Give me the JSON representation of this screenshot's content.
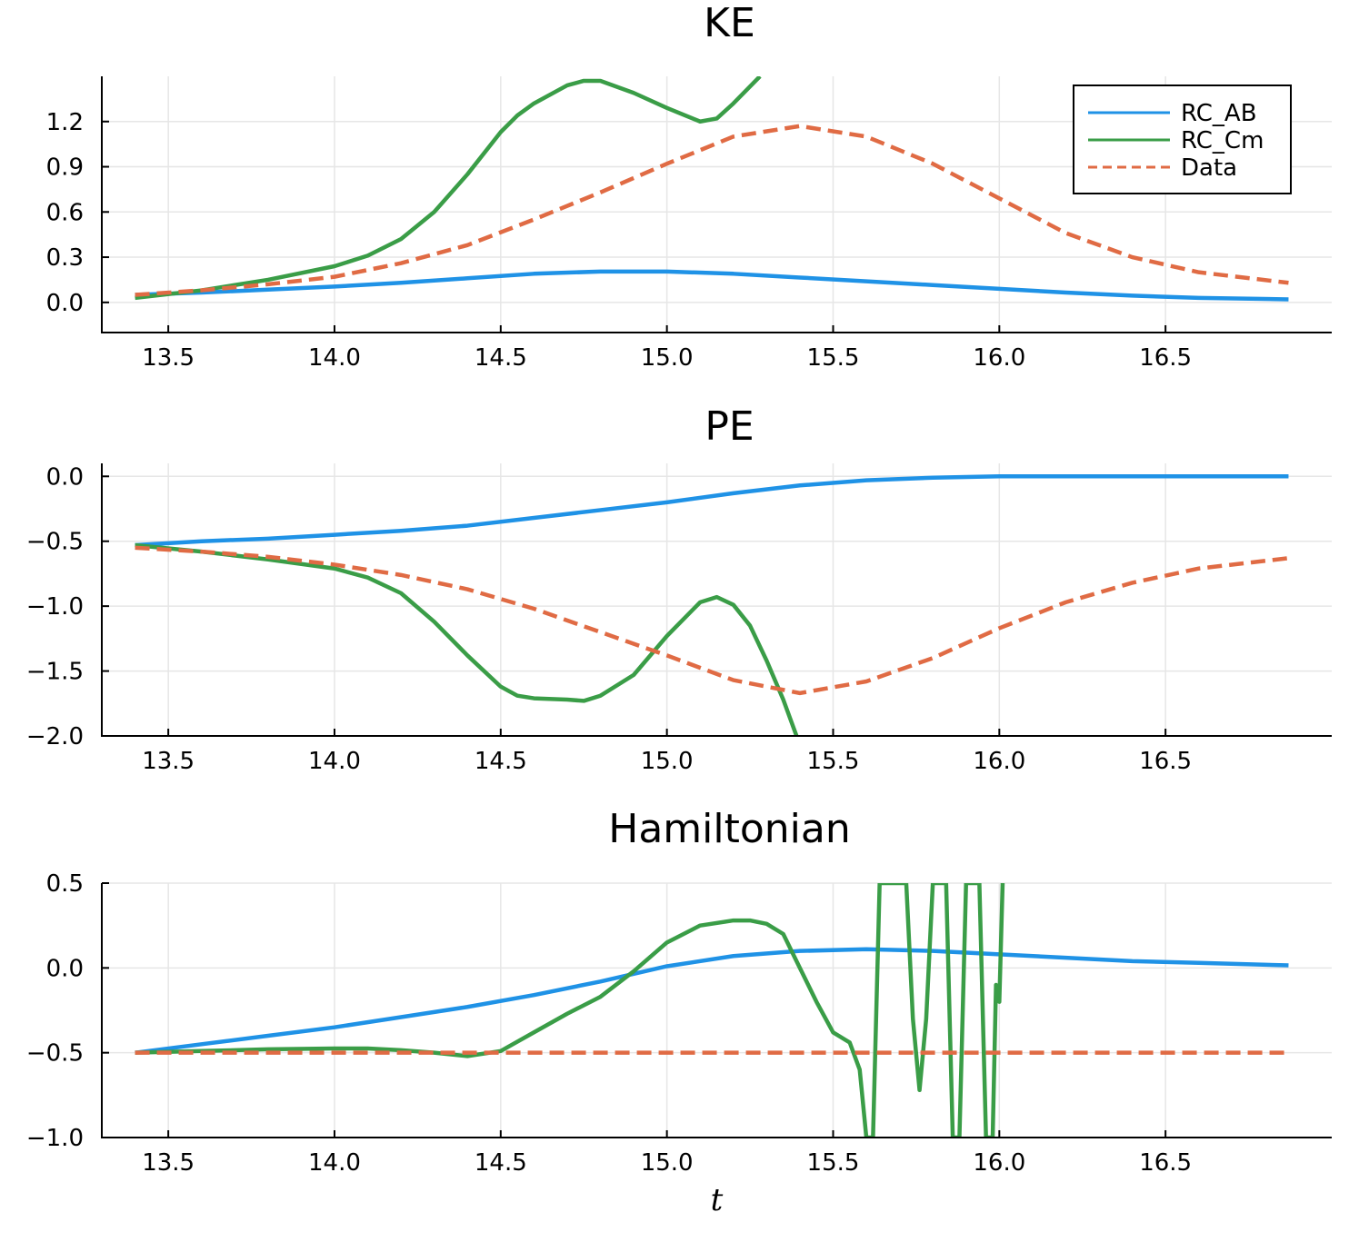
{
  "colors": {
    "RC_AB": "#1f92e6",
    "RC_Cm": "#3a9d47",
    "Data": "#e06b44"
  },
  "chart_data": [
    {
      "type": "line",
      "title": "KE",
      "xlabel": "",
      "ylabel": "",
      "xlim": [
        13.3,
        17.0
      ],
      "ylim": [
        -0.2,
        1.5
      ],
      "xticks": [
        "13.5",
        "14.0",
        "14.5",
        "15.0",
        "15.5",
        "16.0",
        "16.5"
      ],
      "yticks": [
        "0.0",
        "0.3",
        "0.6",
        "0.9",
        "1.2"
      ],
      "grid": true,
      "legend": "top-right",
      "series": [
        {
          "name": "RC_AB",
          "style": "solid",
          "x": [
            13.4,
            13.6,
            13.8,
            14.0,
            14.2,
            14.4,
            14.6,
            14.8,
            15.0,
            15.2,
            15.4,
            15.6,
            15.8,
            16.0,
            16.2,
            16.4,
            16.6,
            16.87
          ],
          "y": [
            0.05,
            0.065,
            0.085,
            0.105,
            0.13,
            0.16,
            0.19,
            0.205,
            0.205,
            0.19,
            0.165,
            0.14,
            0.115,
            0.09,
            0.065,
            0.045,
            0.03,
            0.02
          ]
        },
        {
          "name": "RC_Cm",
          "style": "solid",
          "x": [
            13.4,
            13.6,
            13.8,
            14.0,
            14.1,
            14.2,
            14.3,
            14.4,
            14.5,
            14.55,
            14.6,
            14.7,
            14.75,
            14.8,
            14.9,
            15.0,
            15.1,
            15.15,
            15.2,
            15.28
          ],
          "y": [
            0.03,
            0.08,
            0.15,
            0.24,
            0.31,
            0.42,
            0.6,
            0.85,
            1.13,
            1.24,
            1.32,
            1.44,
            1.47,
            1.47,
            1.39,
            1.29,
            1.2,
            1.22,
            1.32,
            1.5
          ]
        },
        {
          "name": "Data",
          "style": "dashed",
          "x": [
            13.4,
            13.6,
            13.8,
            14.0,
            14.2,
            14.4,
            14.6,
            14.8,
            15.0,
            15.2,
            15.4,
            15.6,
            15.8,
            16.0,
            16.2,
            16.4,
            16.6,
            16.87
          ],
          "y": [
            0.05,
            0.08,
            0.12,
            0.17,
            0.26,
            0.38,
            0.55,
            0.73,
            0.92,
            1.1,
            1.17,
            1.1,
            0.92,
            0.69,
            0.46,
            0.3,
            0.2,
            0.13
          ]
        }
      ]
    },
    {
      "type": "line",
      "title": "PE",
      "xlabel": "",
      "ylabel": "",
      "xlim": [
        13.3,
        17.0
      ],
      "ylim": [
        -2.0,
        0.1
      ],
      "xticks": [
        "13.5",
        "14.0",
        "14.5",
        "15.0",
        "15.5",
        "16.0",
        "16.5"
      ],
      "yticks": [
        "0.0",
        "−0.5",
        "−1.0",
        "−1.5",
        "−2.0"
      ],
      "grid": true,
      "series": [
        {
          "name": "RC_AB",
          "style": "solid",
          "x": [
            13.4,
            13.6,
            13.8,
            14.0,
            14.2,
            14.4,
            14.6,
            14.8,
            15.0,
            15.2,
            15.4,
            15.6,
            15.8,
            16.0,
            16.2,
            16.4,
            16.6,
            16.87
          ],
          "y": [
            -0.53,
            -0.5,
            -0.48,
            -0.45,
            -0.42,
            -0.38,
            -0.32,
            -0.26,
            -0.2,
            -0.13,
            -0.07,
            -0.03,
            -0.01,
            0.0,
            0.0,
            0.0,
            0.0,
            0.0
          ]
        },
        {
          "name": "RC_Cm",
          "style": "solid",
          "x": [
            13.4,
            13.6,
            13.8,
            14.0,
            14.1,
            14.2,
            14.3,
            14.4,
            14.5,
            14.55,
            14.6,
            14.7,
            14.75,
            14.8,
            14.9,
            15.0,
            15.1,
            15.15,
            15.2,
            15.25,
            15.3,
            15.35,
            15.39
          ],
          "y": [
            -0.53,
            -0.58,
            -0.64,
            -0.71,
            -0.78,
            -0.9,
            -1.12,
            -1.38,
            -1.62,
            -1.69,
            -1.71,
            -1.72,
            -1.73,
            -1.69,
            -1.53,
            -1.23,
            -0.97,
            -0.93,
            -0.99,
            -1.15,
            -1.42,
            -1.72,
            -2.0
          ]
        },
        {
          "name": "Data",
          "style": "dashed",
          "x": [
            13.4,
            13.6,
            13.8,
            14.0,
            14.2,
            14.4,
            14.6,
            14.8,
            15.0,
            15.2,
            15.4,
            15.6,
            15.8,
            16.0,
            16.2,
            16.4,
            16.6,
            16.87
          ],
          "y": [
            -0.55,
            -0.58,
            -0.62,
            -0.68,
            -0.76,
            -0.87,
            -1.02,
            -1.2,
            -1.38,
            -1.57,
            -1.67,
            -1.58,
            -1.4,
            -1.17,
            -0.97,
            -0.82,
            -0.71,
            -0.63
          ]
        }
      ]
    },
    {
      "type": "line",
      "title": "Hamiltonian",
      "xlabel": "t",
      "ylabel": "",
      "xlim": [
        13.3,
        17.0
      ],
      "ylim": [
        -1.0,
        0.5
      ],
      "xticks": [
        "13.5",
        "14.0",
        "14.5",
        "15.0",
        "15.5",
        "16.0",
        "16.5"
      ],
      "yticks": [
        "0.5",
        "0.0",
        "−0.5",
        "−1.0"
      ],
      "grid": true,
      "series": [
        {
          "name": "RC_AB",
          "style": "solid",
          "x": [
            13.4,
            13.6,
            13.8,
            14.0,
            14.2,
            14.4,
            14.6,
            14.8,
            15.0,
            15.2,
            15.4,
            15.6,
            15.8,
            16.0,
            16.2,
            16.4,
            16.6,
            16.87
          ],
          "y": [
            -0.5,
            -0.45,
            -0.4,
            -0.35,
            -0.29,
            -0.23,
            -0.16,
            -0.08,
            0.01,
            0.07,
            0.1,
            0.11,
            0.1,
            0.08,
            0.06,
            0.04,
            0.03,
            0.015
          ]
        },
        {
          "name": "RC_Cm",
          "style": "solid",
          "x": [
            13.4,
            13.6,
            13.8,
            14.0,
            14.1,
            14.2,
            14.3,
            14.4,
            14.5,
            14.6,
            14.7,
            14.8,
            14.9,
            15.0,
            15.1,
            15.2,
            15.25,
            15.3,
            15.35,
            15.4,
            15.45,
            15.5,
            15.55,
            15.58,
            15.6,
            15.62,
            15.64,
            15.66,
            15.72,
            15.74,
            15.76,
            15.78,
            15.8,
            15.82,
            15.84,
            15.86,
            15.88,
            15.9,
            15.92,
            15.94,
            15.96,
            15.97,
            15.98,
            15.99,
            16.0,
            16.01,
            16.015
          ],
          "y": [
            -0.5,
            -0.49,
            -0.48,
            -0.475,
            -0.475,
            -0.485,
            -0.5,
            -0.52,
            -0.49,
            -0.38,
            -0.27,
            -0.17,
            -0.02,
            0.15,
            0.25,
            0.28,
            0.28,
            0.26,
            0.2,
            0.0,
            -0.2,
            -0.38,
            -0.44,
            -0.6,
            -1.0,
            -1.0,
            0.5,
            0.5,
            0.5,
            -0.3,
            -0.72,
            -0.3,
            0.5,
            0.5,
            0.5,
            -1.0,
            -1.0,
            0.5,
            0.5,
            0.5,
            -1.0,
            -1.0,
            -1.0,
            -0.1,
            -0.2,
            0.5,
            0.5
          ]
        },
        {
          "name": "Data",
          "style": "dashed",
          "x": [
            13.4,
            16.87
          ],
          "y": [
            -0.5,
            -0.5
          ]
        }
      ]
    }
  ],
  "legend_items": [
    {
      "name": "RC_AB",
      "style": "solid"
    },
    {
      "name": "RC_Cm",
      "style": "solid"
    },
    {
      "name": "Data",
      "style": "dashed"
    }
  ]
}
